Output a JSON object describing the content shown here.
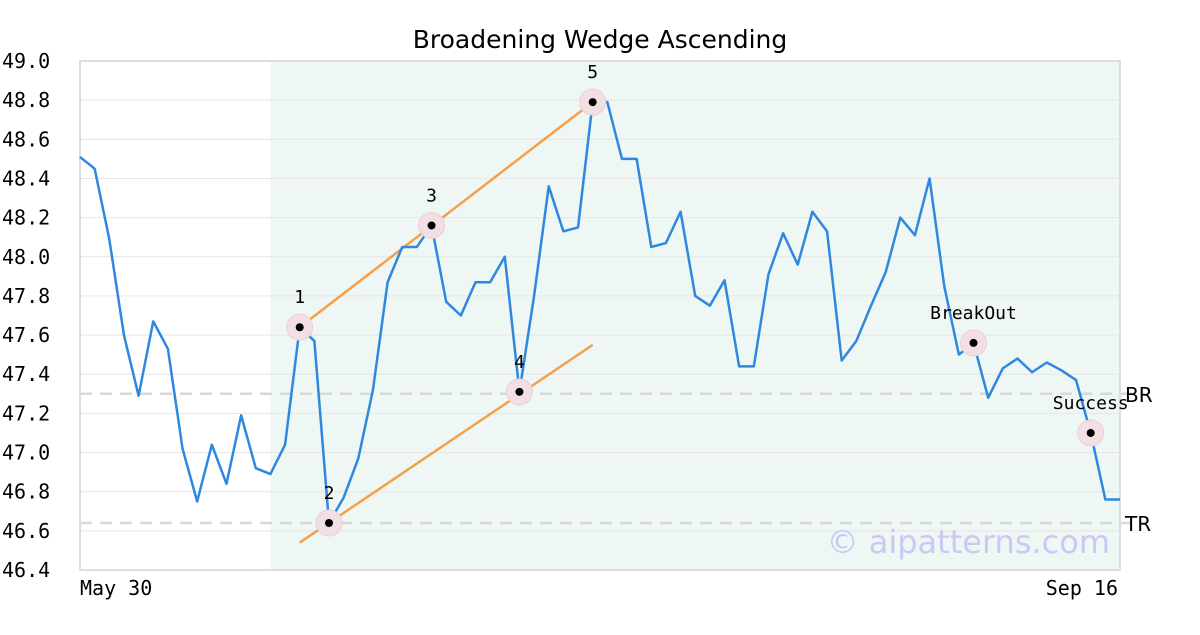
{
  "chart_data": {
    "type": "line",
    "title": "Broadening Wedge Ascending",
    "ylim": [
      46.4,
      49.0
    ],
    "yticks": [
      "49.0",
      "48.8",
      "48.6",
      "48.4",
      "48.2",
      "48.0",
      "47.8",
      "47.6",
      "47.4",
      "47.2",
      "47.0",
      "46.8",
      "46.6",
      "46.4"
    ],
    "x_tick_labels": [
      "May 30",
      "Sep 16"
    ],
    "grid": true,
    "series": [
      {
        "values": [
          48.51,
          48.45,
          48.09,
          47.6,
          47.29,
          47.67,
          47.53,
          47.02,
          46.75,
          47.04,
          46.84,
          47.19,
          46.92,
          46.89,
          47.04,
          47.64,
          47.57,
          46.64,
          46.77,
          46.97,
          47.32,
          47.87,
          48.05,
          48.05,
          48.16,
          47.77,
          47.7,
          47.87,
          47.87,
          48.0,
          47.31,
          47.8,
          48.36,
          48.13,
          48.15,
          48.79,
          48.79,
          48.5,
          48.5,
          48.05,
          48.07,
          48.23,
          47.8,
          47.75,
          47.88,
          47.44,
          47.44,
          47.91,
          48.12,
          47.96,
          48.23,
          48.13,
          47.47,
          47.57,
          47.75,
          47.92,
          48.2,
          48.11,
          48.4,
          47.85,
          47.5,
          47.56,
          47.28,
          47.43,
          47.48,
          47.41,
          47.46,
          47.42,
          47.37,
          47.1,
          46.76,
          46.76
        ],
        "color": "#2f88e0"
      }
    ],
    "pattern_region": {
      "start_index": 13,
      "end_index": 71,
      "color": "#eef7f3"
    },
    "trendlines": [
      {
        "from": [
          15,
          47.64
        ],
        "to": [
          35,
          48.79
        ],
        "color": "#f5a04a"
      },
      {
        "from": [
          15,
          46.54
        ],
        "to": [
          35,
          47.55
        ],
        "color": "#f5a04a"
      }
    ],
    "points": [
      {
        "label": "1",
        "index": 15,
        "value": 47.64
      },
      {
        "label": "2",
        "index": 17,
        "value": 46.64
      },
      {
        "label": "3",
        "index": 24,
        "value": 48.16
      },
      {
        "label": "4",
        "index": 30,
        "value": 47.31
      },
      {
        "label": "5",
        "index": 35,
        "value": 48.79
      },
      {
        "label": "BreakOut",
        "index": 61,
        "value": 47.56
      },
      {
        "label": "Success",
        "index": 69,
        "value": 47.1
      }
    ],
    "reference_lines": [
      {
        "label": "BR",
        "value": 47.3
      },
      {
        "label": "TR",
        "value": 46.64
      }
    ],
    "watermark": "© aipatterns.com"
  }
}
